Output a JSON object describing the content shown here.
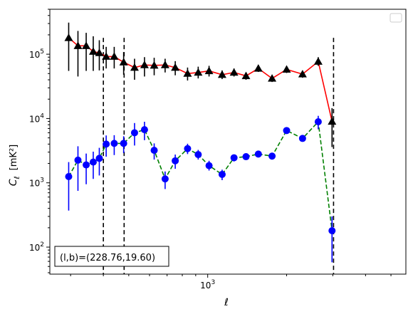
{
  "chart_data": {
    "type": "scatter",
    "xlabel": "ℓ",
    "ylabel_main": "C",
    "ylabel_sub": "ℓ",
    "ylabel_unit": "[mK²]",
    "xscale": "log",
    "yscale": "log",
    "xlim": [
      250,
      5700
    ],
    "ylim": [
      38,
      500000
    ],
    "x_tick_labels": [
      {
        "value": 1000,
        "base": "10",
        "exp": "3"
      }
    ],
    "y_tick_labels": [
      {
        "value": 100,
        "base": "10",
        "exp": "2"
      },
      {
        "value": 1000,
        "base": "10",
        "exp": "3"
      },
      {
        "value": 10000,
        "base": "10",
        "exp": "4"
      },
      {
        "value": 100000,
        "base": "10",
        "exp": "5"
      }
    ],
    "vertical_lines": [
      400,
      480,
      3020
    ],
    "annotation": "(l,b)=(228.76,19.60)",
    "legend": "top-right",
    "grid": false,
    "series": [
      {
        "marker": "triangle",
        "color": "#000000",
        "line_color": "#ff0000",
        "line_style": "solid",
        "points": [
          {
            "x": 295,
            "y": 180000,
            "lo": 55000,
            "hi": 310000
          },
          {
            "x": 320,
            "y": 135000,
            "lo": 45000,
            "hi": 230000
          },
          {
            "x": 344,
            "y": 135000,
            "lo": 55000,
            "hi": 215000
          },
          {
            "x": 366,
            "y": 110000,
            "lo": 55000,
            "hi": 190000
          },
          {
            "x": 386,
            "y": 105000,
            "lo": 56000,
            "hi": 165000
          },
          {
            "x": 410,
            "y": 92000,
            "lo": 60000,
            "hi": 130000
          },
          {
            "x": 440,
            "y": 92000,
            "lo": 60000,
            "hi": 130000
          },
          {
            "x": 478,
            "y": 75000,
            "lo": 48000,
            "hi": 108000
          },
          {
            "x": 526,
            "y": 62000,
            "lo": 40000,
            "hi": 85000
          },
          {
            "x": 574,
            "y": 68000,
            "lo": 45000,
            "hi": 90000
          },
          {
            "x": 625,
            "y": 67000,
            "lo": 47000,
            "hi": 88000
          },
          {
            "x": 688,
            "y": 68000,
            "lo": 52000,
            "hi": 85000
          },
          {
            "x": 752,
            "y": 62000,
            "lo": 47000,
            "hi": 78000
          },
          {
            "x": 838,
            "y": 50000,
            "lo": 39000,
            "hi": 62000
          },
          {
            "x": 920,
            "y": 52000,
            "lo": 42000,
            "hi": 64000
          },
          {
            "x": 1012,
            "y": 55000,
            "lo": 45000,
            "hi": 66000
          },
          {
            "x": 1135,
            "y": 48000,
            "lo": 41000,
            "hi": 56000
          },
          {
            "x": 1260,
            "y": 52000,
            "lo": 45000,
            "hi": 60000
          },
          {
            "x": 1400,
            "y": 46000,
            "lo": 40000,
            "hi": 52000
          },
          {
            "x": 1560,
            "y": 60000,
            "lo": 53000,
            "hi": 68000
          },
          {
            "x": 1760,
            "y": 42000,
            "lo": 37000,
            "hi": 47000
          },
          {
            "x": 2000,
            "y": 58000,
            "lo": 51000,
            "hi": 65000
          },
          {
            "x": 2300,
            "y": 49000,
            "lo": 43000,
            "hi": 55000
          },
          {
            "x": 2640,
            "y": 77000,
            "lo": 66000,
            "hi": 90000
          },
          {
            "x": 2980,
            "y": 9000,
            "lo": 3600,
            "hi": 14500
          }
        ]
      },
      {
        "marker": "circle",
        "color": "#0000ff",
        "line_color": "#008000",
        "line_style": "dashed",
        "points": [
          {
            "x": 295,
            "y": 1250,
            "lo": 370,
            "hi": 2100
          },
          {
            "x": 320,
            "y": 2250,
            "lo": 750,
            "hi": 3700
          },
          {
            "x": 344,
            "y": 1900,
            "lo": 950,
            "hi": 2850
          },
          {
            "x": 366,
            "y": 2100,
            "lo": 1150,
            "hi": 3050
          },
          {
            "x": 386,
            "y": 2400,
            "lo": 1300,
            "hi": 3500
          },
          {
            "x": 410,
            "y": 4000,
            "lo": 2550,
            "hi": 5450
          },
          {
            "x": 440,
            "y": 4100,
            "lo": 2700,
            "hi": 5500
          },
          {
            "x": 478,
            "y": 4100,
            "lo": 2900,
            "hi": 5300
          },
          {
            "x": 526,
            "y": 6000,
            "lo": 3800,
            "hi": 8500
          },
          {
            "x": 574,
            "y": 6700,
            "lo": 4600,
            "hi": 8900
          },
          {
            "x": 625,
            "y": 3200,
            "lo": 2300,
            "hi": 4100
          },
          {
            "x": 688,
            "y": 1150,
            "lo": 800,
            "hi": 1500
          },
          {
            "x": 752,
            "y": 2200,
            "lo": 1650,
            "hi": 2750
          },
          {
            "x": 838,
            "y": 3400,
            "lo": 2800,
            "hi": 4050
          },
          {
            "x": 920,
            "y": 2750,
            "lo": 2300,
            "hi": 3250
          },
          {
            "x": 1012,
            "y": 1850,
            "lo": 1550,
            "hi": 2200
          },
          {
            "x": 1135,
            "y": 1350,
            "lo": 1100,
            "hi": 1600
          },
          {
            "x": 1260,
            "y": 2450,
            "lo": 2150,
            "hi": 2750
          },
          {
            "x": 1400,
            "y": 2550,
            "lo": 2300,
            "hi": 2850
          },
          {
            "x": 1560,
            "y": 2800,
            "lo": 2550,
            "hi": 3100
          },
          {
            "x": 1760,
            "y": 2600,
            "lo": 2380,
            "hi": 2850
          },
          {
            "x": 2000,
            "y": 6500,
            "lo": 5800,
            "hi": 7200
          },
          {
            "x": 2300,
            "y": 4900,
            "lo": 4400,
            "hi": 5450
          },
          {
            "x": 2640,
            "y": 8900,
            "lo": 6800,
            "hi": 11000
          },
          {
            "x": 2980,
            "y": 180,
            "lo": 58,
            "hi": 300
          }
        ]
      }
    ]
  }
}
